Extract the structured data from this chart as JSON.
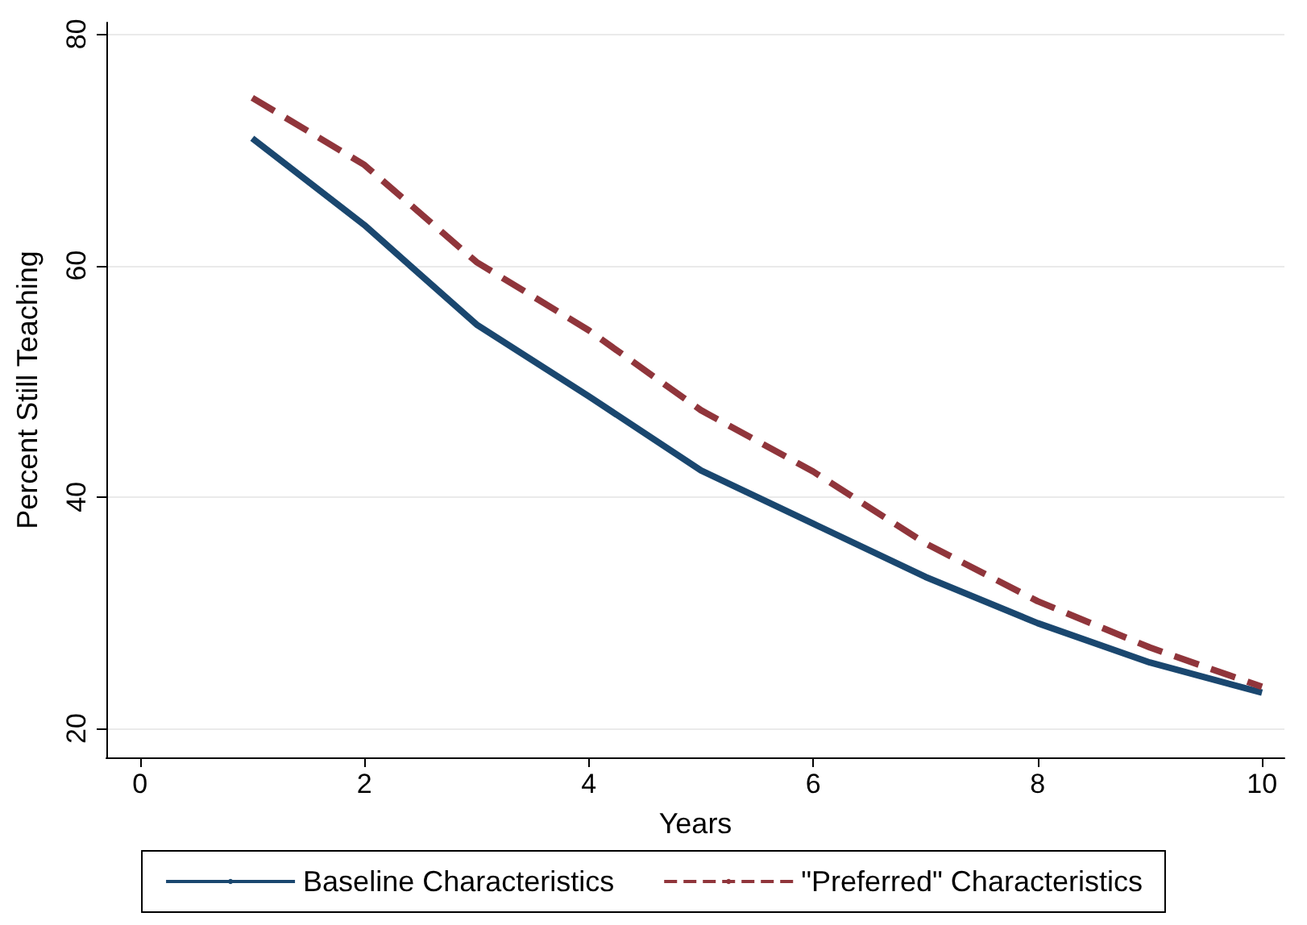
{
  "chart_data": {
    "type": "line",
    "xlabel": "Years",
    "ylabel": "Percent Still Teaching",
    "x": [
      1,
      2,
      3,
      4,
      5,
      6,
      7,
      8,
      9,
      10
    ],
    "series": [
      {
        "name": "Baseline Characteristics",
        "color": "#1a476f",
        "line_style": "solid",
        "values": [
          71,
          63.5,
          54.9,
          48.7,
          42.3,
          37.7,
          33.1,
          29.1,
          25.7,
          23.1
        ]
      },
      {
        "name": "\"Preferred\" Characteristics",
        "color": "#90353b",
        "line_style": "dashed",
        "values": [
          74.5,
          68.7,
          60.3,
          54.4,
          47.5,
          42.2,
          36,
          31,
          27,
          23.6
        ]
      }
    ],
    "xlim": [
      -0.3,
      10.2
    ],
    "xticks": [
      0,
      2,
      4,
      6,
      8,
      10
    ],
    "ylim": [
      17.5,
      81
    ],
    "yticks": [
      20,
      40,
      60,
      80
    ],
    "grid": "y",
    "legend": "bottom",
    "marker": "none"
  }
}
